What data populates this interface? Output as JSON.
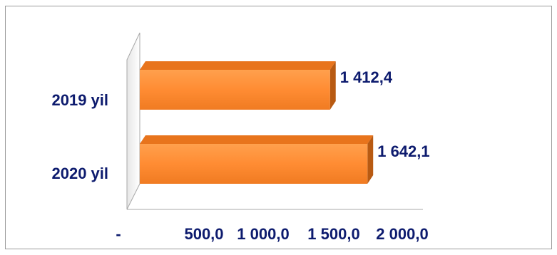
{
  "chart_data": {
    "type": "bar",
    "orientation": "horizontal",
    "categories": [
      "2019 yil",
      "2020 yil"
    ],
    "values": [
      1412.4,
      1642.1
    ],
    "value_labels": [
      "1 412,4",
      "1 642,1"
    ],
    "x_ticks": [
      {
        "value": 0,
        "label": "-"
      },
      {
        "value": 500,
        "label": "500,0"
      },
      {
        "value": 1000,
        "label": "1 000,0"
      },
      {
        "value": 1500,
        "label": "1 500,0"
      },
      {
        "value": 2000,
        "label": "2 000,0"
      }
    ],
    "xlim": [
      0,
      2000
    ],
    "grid": false,
    "legend": "none",
    "colors": {
      "bar_front": "#ff8c33",
      "bar_top": "#e8741c",
      "bar_side": "#b85a12",
      "text": "#0d1b6e",
      "frame": "#9a9a9a"
    }
  }
}
